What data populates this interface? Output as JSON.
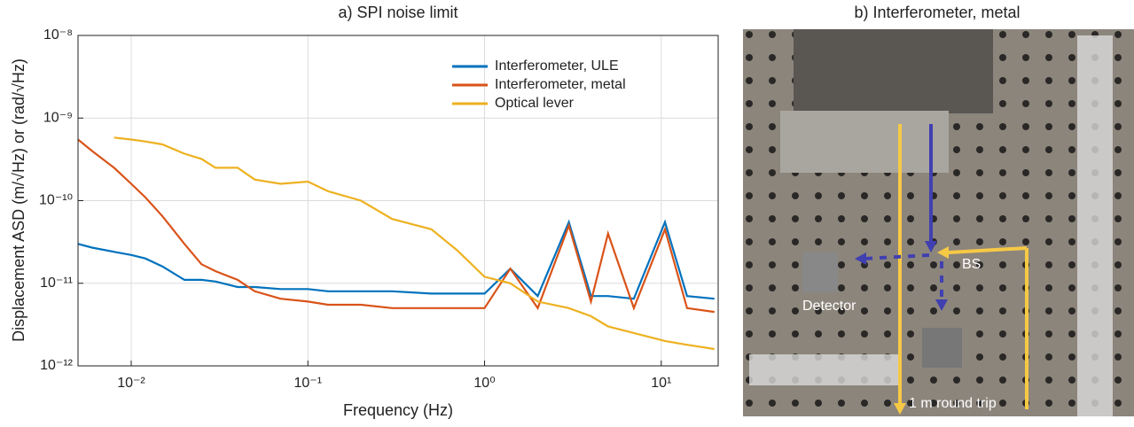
{
  "chart_data": {
    "type": "line",
    "title": "a) SPI noise limit",
    "xlabel": "Frequency (Hz)",
    "ylabel": "Displacement ASD (m/√Hz) or (rad/√Hz)",
    "xscale": "log",
    "yscale": "log",
    "grid": true,
    "legend": "upper right",
    "x": [
      0.005,
      0.006,
      0.008,
      0.01,
      0.012,
      0.015,
      0.02,
      0.025,
      0.03,
      0.04,
      0.05,
      0.07,
      0.1,
      0.13,
      0.2,
      0.3,
      0.5,
      0.7,
      1,
      1.4,
      2,
      3,
      4,
      5,
      7,
      10.5,
      14,
      20
    ],
    "series": [
      {
        "name": "Interferometer, ULE",
        "color": "#0072bd",
        "values": [
          3e-11,
          2.7e-11,
          2.4e-11,
          2.2e-11,
          2e-11,
          1.6e-11,
          1.1e-11,
          1.1e-11,
          1.05e-11,
          9e-12,
          9e-12,
          8.5e-12,
          8.5e-12,
          8e-12,
          8e-12,
          8e-12,
          7.5e-12,
          7.5e-12,
          7.5e-12,
          1.5e-11,
          7e-12,
          5.5e-11,
          7e-12,
          7e-12,
          6.5e-12,
          5.5e-11,
          7e-12,
          6.5e-12
        ]
      },
      {
        "name": "Interferometer, metal",
        "color": "#d95319",
        "values": [
          5.5e-10,
          4e-10,
          2.5e-10,
          1.6e-10,
          1.1e-10,
          6.5e-11,
          3e-11,
          1.7e-11,
          1.4e-11,
          1.1e-11,
          8e-12,
          6.5e-12,
          6e-12,
          5.5e-12,
          5.5e-12,
          5e-12,
          5e-12,
          5e-12,
          5e-12,
          1.5e-11,
          5e-12,
          5e-11,
          6e-12,
          4e-11,
          5e-12,
          4.5e-11,
          5e-12,
          4.5e-12
        ]
      },
      {
        "name": "Optical lever",
        "color": "#edb120",
        "values": [
          null,
          null,
          5.8e-10,
          5.5e-10,
          5.2e-10,
          4.8e-10,
          3.7e-10,
          3.2e-10,
          2.5e-10,
          2.5e-10,
          1.8e-10,
          1.6e-10,
          1.7e-10,
          1.3e-10,
          1e-10,
          6e-11,
          4.5e-11,
          2.5e-11,
          1.2e-11,
          1e-11,
          6e-12,
          5e-12,
          4e-12,
          3e-12,
          2.5e-12,
          2e-12,
          1.8e-12,
          1.6e-12
        ]
      }
    ],
    "xlim": [
      0.005,
      21
    ],
    "ylim": [
      1e-12,
      1e-08
    ],
    "xticks": [
      {
        "value": 0.01,
        "label": "10⁻²"
      },
      {
        "value": 0.1,
        "label": "10⁻¹"
      },
      {
        "value": 1,
        "label": "10⁰"
      },
      {
        "value": 10,
        "label": "10¹"
      }
    ],
    "yticks": [
      {
        "value": 1e-12,
        "label": "10⁻¹²"
      },
      {
        "value": 1e-11,
        "label": "10⁻¹¹"
      },
      {
        "value": 1e-10,
        "label": "10⁻¹⁰"
      },
      {
        "value": 1e-09,
        "label": "10⁻⁹"
      },
      {
        "value": 1e-08,
        "label": "10⁻⁸"
      }
    ]
  },
  "photo_panel": {
    "title": "b) Interferometer, metal",
    "labels": [
      "BS",
      "Detector",
      "1 m round trip"
    ]
  }
}
